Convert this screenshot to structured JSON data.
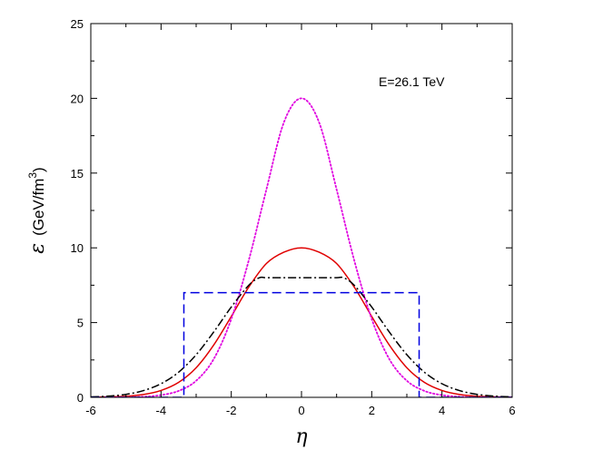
{
  "chart_data": {
    "type": "line",
    "xlabel": "η",
    "ylabel_symbol": "ε",
    "ylabel_unit": "(GeV/fm",
    "ylabel_unit_sup": "3",
    "ylabel_unit_close": ")",
    "annotation": "E=26.1 TeV",
    "xlim": [
      -6,
      6
    ],
    "ylim": [
      0,
      25
    ],
    "xticks": [
      -6,
      -4,
      -2,
      0,
      2,
      4,
      6
    ],
    "yticks": [
      0,
      5,
      10,
      15,
      20,
      25
    ],
    "grid": false,
    "series": [
      {
        "style": "solid",
        "color": "#e00000",
        "x": [
          -6,
          -5.5,
          -5,
          -4.5,
          -4,
          -3.5,
          -3,
          -2.5,
          -2,
          -1.5,
          -1,
          -0.5,
          0,
          0.5,
          1,
          1.5,
          2,
          2.5,
          3,
          3.5,
          4,
          4.5,
          5,
          5.5,
          6
        ],
        "y": [
          0.01,
          0.03,
          0.07,
          0.19,
          0.46,
          1.0,
          1.98,
          3.5,
          5.41,
          7.38,
          8.95,
          9.71,
          10.0,
          9.71,
          8.95,
          7.38,
          5.41,
          3.5,
          1.98,
          1.0,
          0.46,
          0.19,
          0.07,
          0.03,
          0.01
        ]
      },
      {
        "style": "dotted",
        "color": "#e000e0",
        "x": [
          -6,
          -5,
          -4.5,
          -4,
          -3.5,
          -3,
          -2.5,
          -2,
          -1.5,
          -1,
          -0.5,
          0,
          0.5,
          1,
          1.5,
          2,
          2.5,
          3,
          3.5,
          4,
          4.5,
          5,
          6
        ],
        "y": [
          0.0,
          0.01,
          0.04,
          0.15,
          0.43,
          1.11,
          2.56,
          5.24,
          9.18,
          13.9,
          18.4,
          20.0,
          18.4,
          13.9,
          9.18,
          5.24,
          2.56,
          1.11,
          0.43,
          0.15,
          0.04,
          0.01,
          0.0
        ]
      },
      {
        "style": "dashdot",
        "color": "#000000",
        "x": [
          -6,
          -5.5,
          -5,
          -4.5,
          -4,
          -3.5,
          -3,
          -2.5,
          -2,
          -1.5,
          -1.2,
          -1,
          -0.5,
          0,
          0.5,
          1,
          1.2,
          1.5,
          2,
          2.5,
          3,
          3.5,
          4,
          4.5,
          5,
          5.5,
          6
        ],
        "y": [
          0.03,
          0.08,
          0.2,
          0.45,
          0.91,
          1.68,
          2.85,
          4.37,
          6.04,
          7.5,
          8.0,
          8.0,
          8.0,
          8.0,
          8.0,
          8.0,
          8.0,
          7.5,
          6.04,
          4.37,
          2.85,
          1.68,
          0.91,
          0.45,
          0.2,
          0.08,
          0.03
        ]
      },
      {
        "style": "dashed",
        "color": "#0000e0",
        "x": [
          -6,
          -3.35,
          -3.35,
          3.35,
          3.35,
          6
        ],
        "y": [
          0,
          0,
          7.0,
          7.0,
          0,
          0
        ]
      }
    ]
  }
}
